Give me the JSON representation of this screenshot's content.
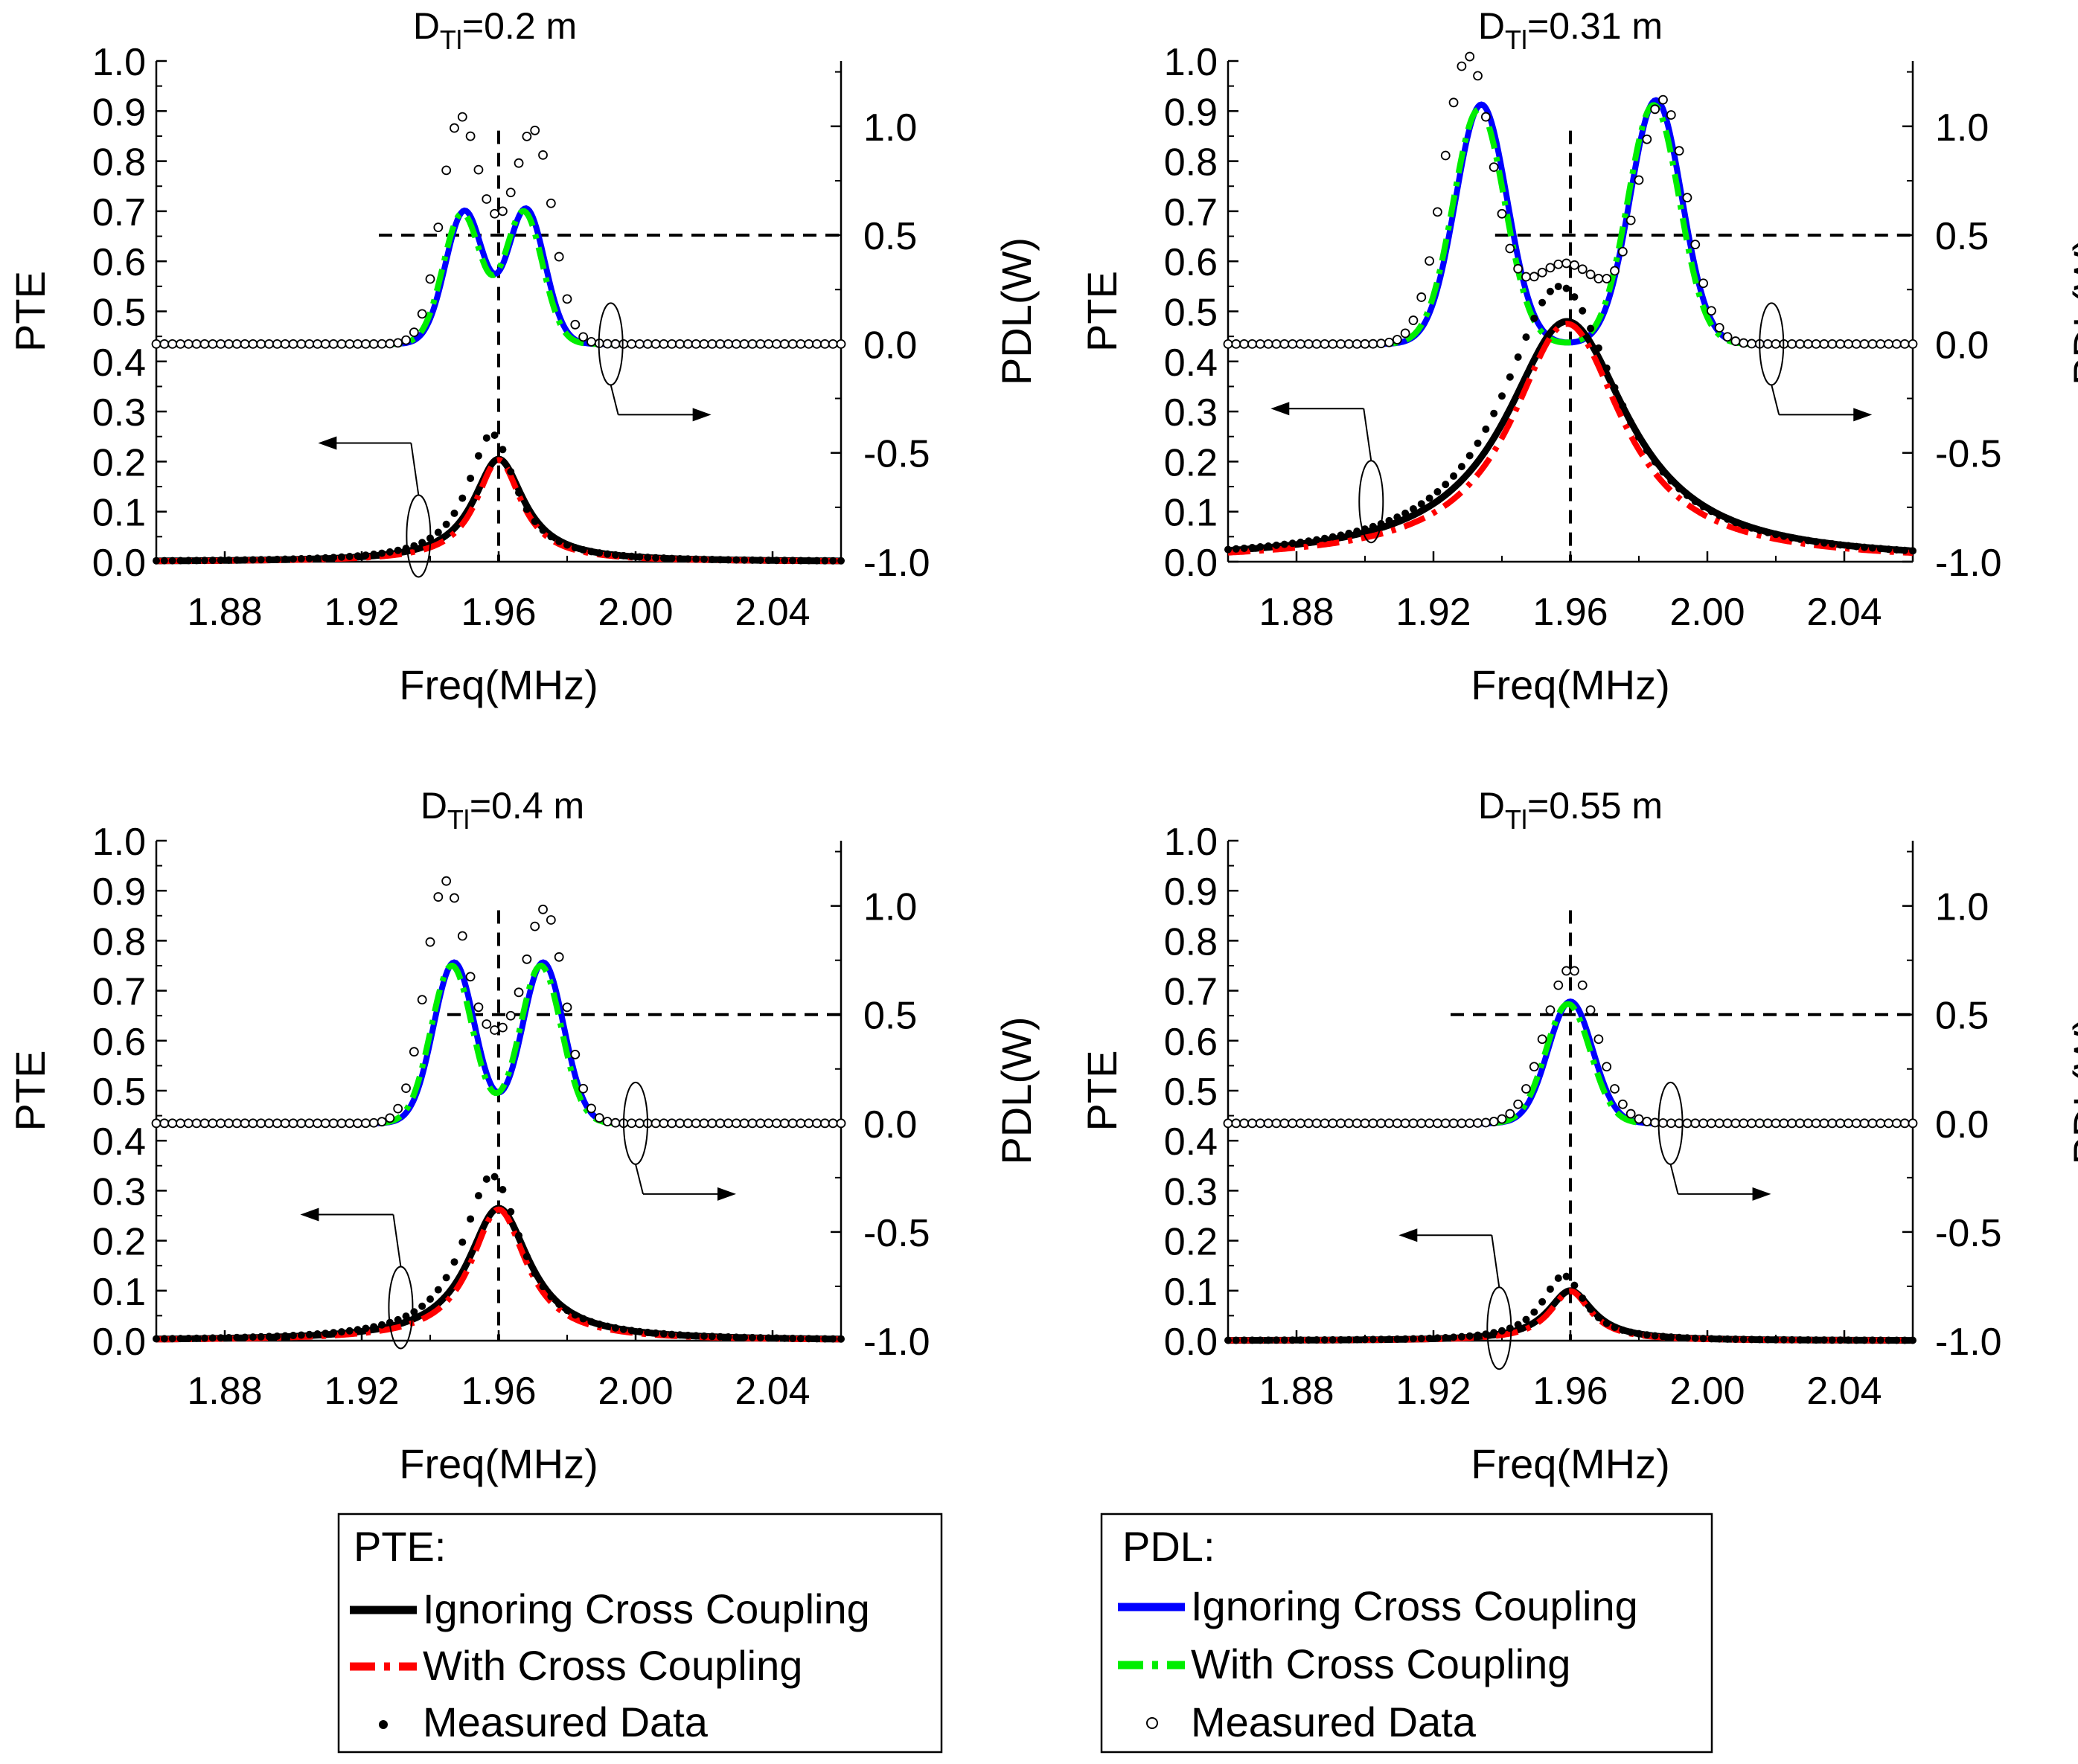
{
  "chart_data": [
    {
      "type": "line",
      "title_main": "D",
      "title_sub": "Tl",
      "title_rest": "=0.2 m",
      "xlabel": "Freq(MHz)",
      "ylabel_left": "PTE",
      "ylabel_right": "PDL(W)",
      "xlim": [
        1.86,
        2.06
      ],
      "ylim_left": [
        0.0,
        1.0
      ],
      "ylim_right": [
        -1.0,
        1.3
      ],
      "x_ticks": [
        "1.88",
        "1.92",
        "1.96",
        "2.00",
        "2.04"
      ],
      "y_left_ticks": [
        "0.0",
        "0.1",
        "0.2",
        "0.3",
        "0.4",
        "0.5",
        "0.6",
        "0.7",
        "0.8",
        "0.9",
        "1.0"
      ],
      "y_right_ticks": [
        "-1.0",
        "-0.5",
        "0.0",
        "0.5",
        "1.0"
      ],
      "vline_x": 1.96,
      "hline_pdl": 0.5,
      "hline_x_start": 1.925,
      "pdl": {
        "base": 0.0,
        "f1": 1.95,
        "f2": 1.968,
        "w": 0.0055,
        "a1": 0.61,
        "a2": 0.62
      },
      "pdl_meas": {
        "f1": 1.948,
        "f2": 1.971,
        "a1": 0.84,
        "a2": 0.78,
        "mid": 0.6
      },
      "pte": {
        "f0": 1.96,
        "peak": 0.205,
        "hw": 0.009,
        "meas_peak": 0.255
      },
      "pte_annotation": "arrow-left",
      "pdl_annotation": "arrow-right"
    },
    {
      "type": "line",
      "title_main": "D",
      "title_sub": "Tl",
      "title_rest": "=0.31 m",
      "xlabel": "Freq(MHz)",
      "ylabel_left": "PTE",
      "ylabel_right": "PDL(W)",
      "xlim": [
        1.86,
        2.06
      ],
      "ylim_left": [
        0.0,
        1.0
      ],
      "ylim_right": [
        -1.0,
        1.3
      ],
      "x_ticks": [
        "1.88",
        "1.92",
        "1.96",
        "2.00",
        "2.04"
      ],
      "y_left_ticks": [
        "0.0",
        "0.1",
        "0.2",
        "0.3",
        "0.4",
        "0.5",
        "0.6",
        "0.7",
        "0.8",
        "0.9",
        "1.0"
      ],
      "y_right_ticks": [
        "-1.0",
        "-0.5",
        "0.0",
        "0.5",
        "1.0"
      ],
      "vline_x": 1.96,
      "hline_pdl": 0.5,
      "hline_x_start": 1.938,
      "pdl": {
        "base": 0.0,
        "f1": 1.934,
        "f2": 1.985,
        "w": 0.0075,
        "a1": 1.1,
        "a2": 1.12
      },
      "pdl_meas": {
        "f1": 1.93,
        "f2": 1.987,
        "a1": 1.3,
        "a2": 1.1,
        "mid": 0.52
      },
      "pte": {
        "f0": 1.959,
        "peak": 0.48,
        "hw": 0.022,
        "meas_peak": 0.55
      },
      "pte_annotation": "arrow-left",
      "pdl_annotation": "arrow-right"
    },
    {
      "type": "line",
      "title_main": "D",
      "title_sub": "Tl",
      "title_rest": "=0.4 m",
      "xlabel": "Freq(MHz)",
      "ylabel_left": "PTE",
      "ylabel_right": "PDL(W)",
      "xlim": [
        1.86,
        2.06
      ],
      "ylim_left": [
        0.0,
        1.0
      ],
      "ylim_right": [
        -1.0,
        1.3
      ],
      "x_ticks": [
        "1.88",
        "1.92",
        "1.96",
        "2.00",
        "2.04"
      ],
      "y_left_ticks": [
        "0.0",
        "0.1",
        "0.2",
        "0.3",
        "0.4",
        "0.5",
        "0.6",
        "0.7",
        "0.8",
        "0.9",
        "1.0"
      ],
      "y_right_ticks": [
        "-1.0",
        "-0.5",
        "0.0",
        "0.5",
        "1.0"
      ],
      "vline_x": 1.96,
      "hline_pdl": 0.5,
      "hline_x_start": 1.945,
      "pdl": {
        "base": 0.0,
        "f1": 1.947,
        "f2": 1.973,
        "w": 0.006,
        "a1": 0.74,
        "a2": 0.74
      },
      "pdl_meas": {
        "f1": 1.944,
        "f2": 1.974,
        "a1": 1.0,
        "a2": 0.87,
        "mid": 0.52
      },
      "pte": {
        "f0": 1.96,
        "peak": 0.265,
        "hw": 0.011,
        "meas_peak": 0.33
      },
      "pte_annotation": "arrow-left",
      "pdl_annotation": "arrow-right"
    },
    {
      "type": "line",
      "title_main": "D",
      "title_sub": "Tl",
      "title_rest": "=0.55 m",
      "xlabel": "Freq(MHz)",
      "ylabel_left": "PTE",
      "ylabel_right": "PDL(W)",
      "xlim": [
        1.86,
        2.06
      ],
      "ylim_left": [
        0.0,
        1.0
      ],
      "ylim_right": [
        -1.0,
        1.3
      ],
      "x_ticks": [
        "1.88",
        "1.92",
        "1.96",
        "2.00",
        "2.04"
      ],
      "y_left_ticks": [
        "0.0",
        "0.1",
        "0.2",
        "0.3",
        "0.4",
        "0.5",
        "0.6",
        "0.7",
        "0.8",
        "0.9",
        "1.0"
      ],
      "y_right_ticks": [
        "-1.0",
        "-0.5",
        "0.0",
        "0.5",
        "1.0"
      ],
      "vline_x": 1.96,
      "hline_pdl": 0.5,
      "hline_x_start": 1.925,
      "pdl": {
        "base": 0.0,
        "f1": 1.96,
        "f2": 1.96,
        "w": 0.0065,
        "a1": 0.56,
        "a2": 0.0
      },
      "pdl_meas": {
        "f1": 1.96,
        "f2": 1.96,
        "a1": 0.71,
        "a2": 0.0,
        "mid": 0.7
      },
      "pte": {
        "f0": 1.96,
        "peak": 0.1,
        "hw": 0.008,
        "meas_peak": 0.13
      },
      "pte_annotation": "arrow-left",
      "pdl_annotation": "arrow-right"
    }
  ],
  "legend_pte": {
    "title": "PTE:",
    "items": [
      {
        "label": "Ignoring Cross Coupling",
        "color": "#000000",
        "style": "solid"
      },
      {
        "label": "With Cross Coupling",
        "color": "#ff0000",
        "style": "dash-dot"
      },
      {
        "label": "Measured Data",
        "color": "#000000",
        "style": "filled-dot"
      }
    ]
  },
  "legend_pdl": {
    "title": "PDL:",
    "items": [
      {
        "label": "Ignoring Cross Coupling",
        "color": "#0000ff",
        "style": "solid"
      },
      {
        "label": "With Cross Coupling",
        "color": "#00ee00",
        "style": "dash-dot"
      },
      {
        "label": "Measured Data",
        "color": "#000000",
        "style": "open-circle"
      }
    ]
  },
  "colors": {
    "pte_ignoring": "#000000",
    "pte_with": "#ff0000",
    "pdl_ignoring": "#0000ff",
    "pdl_with": "#00ee00",
    "axis": "#000000"
  }
}
